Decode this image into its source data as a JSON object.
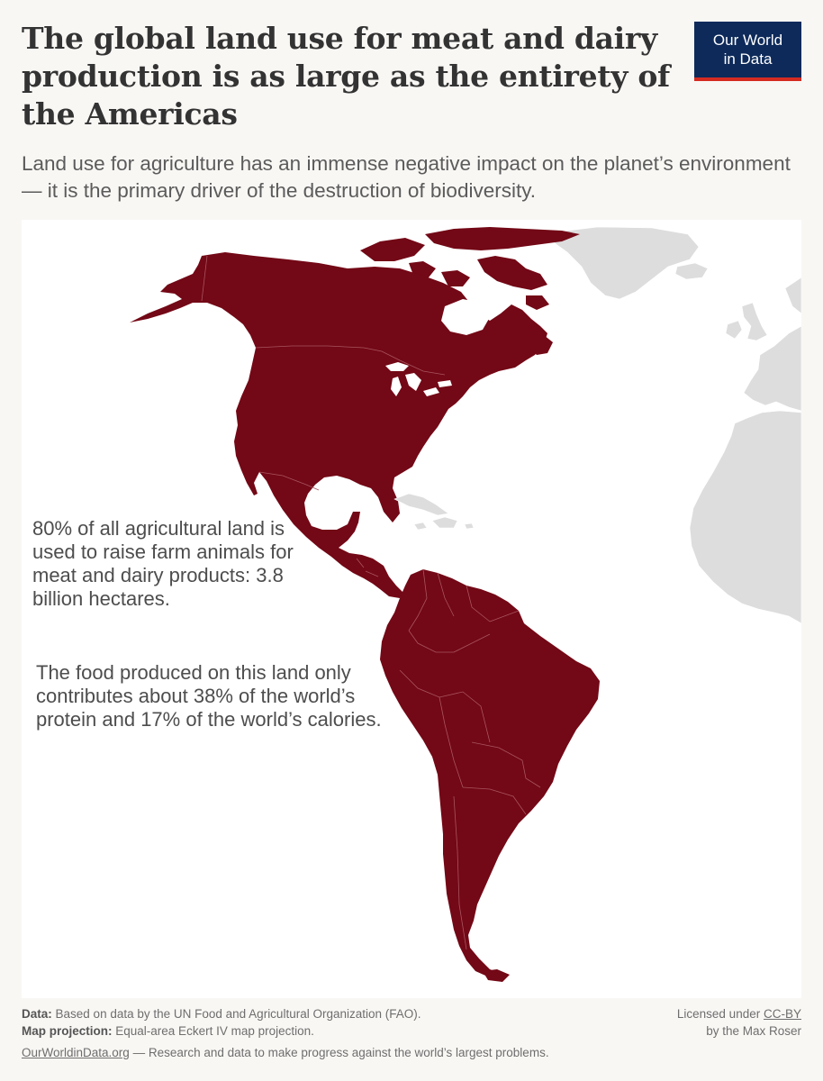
{
  "title": "The global land use for meat and dairy production is as large as the entirety of the Americas",
  "subtitle": "Land use for agriculture has an immense negative impact on the planet’s environment — it is the primary driver of the destruction of biodiversity.",
  "logo": {
    "line1": "Our World",
    "line2": "in Data",
    "background": "#0d2a5a",
    "accent": "#d42b21"
  },
  "map": {
    "highlight_color": "#730816",
    "other_land_color": "#dddddd",
    "border_color": "#a85560",
    "highlighted_region": "Americas"
  },
  "annotations": {
    "livestock_land": "80% of all agricultural land is used to raise farm animals for meat and dairy products: 3.8 billion hectares.",
    "food_contribution": "The food produced on this land only contributes about 38% of the world’s protein and 17% of the world’s calories."
  },
  "footer": {
    "data_label": "Data:",
    "data_text": "Based on data by the UN Food and Agricultural Organization (FAO).",
    "projection_label": "Map projection:",
    "projection_text": "Equal-area Eckert IV map projection.",
    "license_prefix": "Licensed under",
    "license_link": "CC-BY",
    "author": "by the Max Roser",
    "site": "OurWorldinData.org",
    "tagline": "— Research and data to make progress against the world’s largest problems."
  }
}
